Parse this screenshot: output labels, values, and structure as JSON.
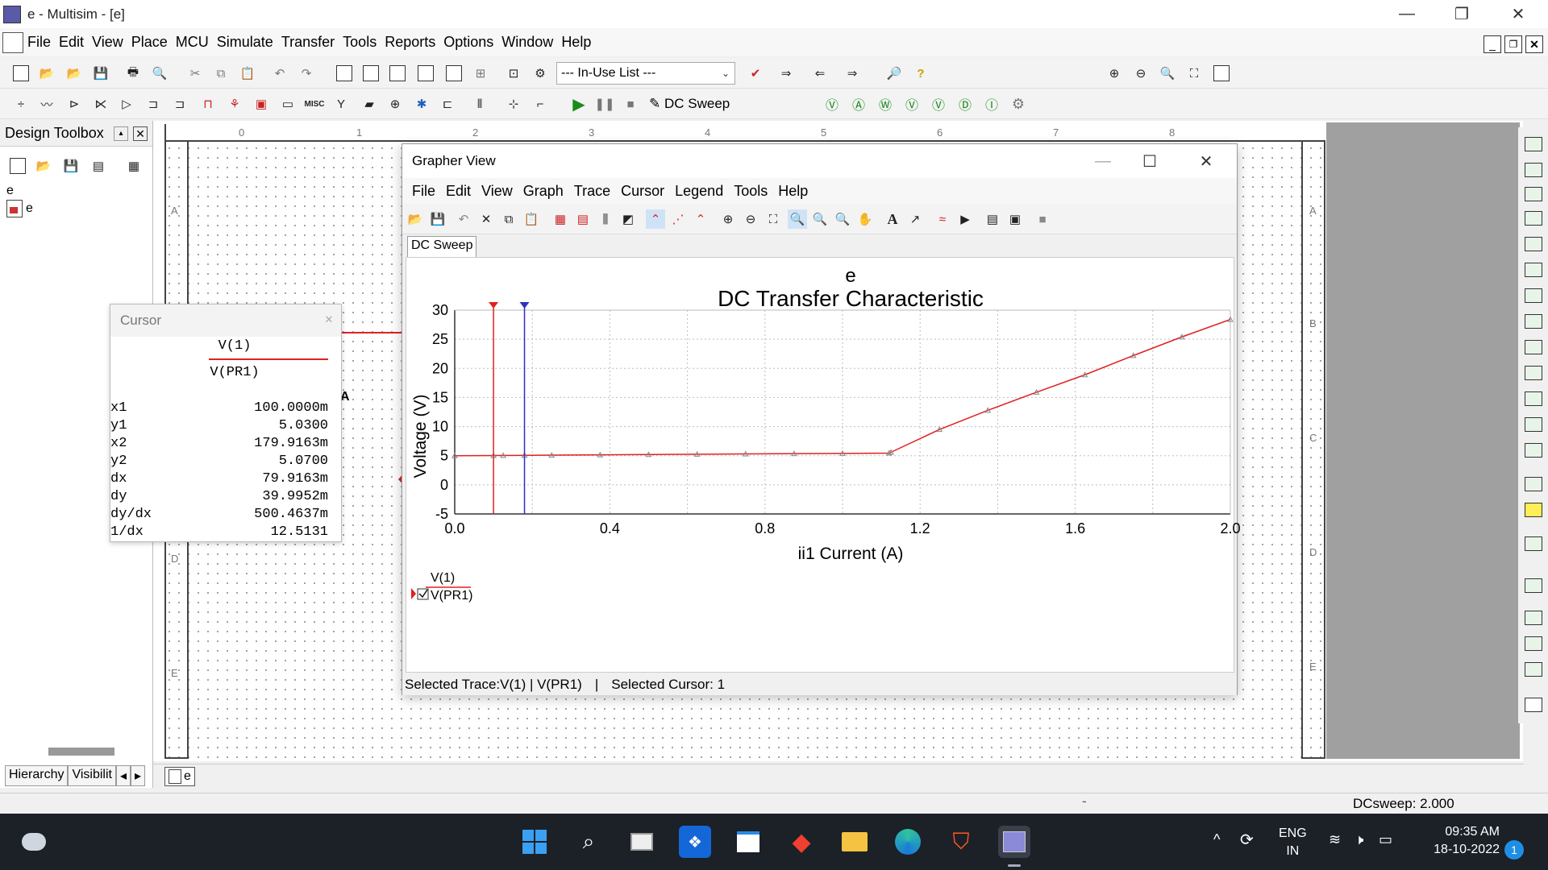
{
  "window": {
    "title": "e - Multisim - [e]",
    "minimize": "—",
    "restore": "❐",
    "close": "✕"
  },
  "menu": [
    "File",
    "Edit",
    "View",
    "Place",
    "MCU",
    "Simulate",
    "Transfer",
    "Tools",
    "Reports",
    "Options",
    "Window",
    "Help"
  ],
  "toolbar": {
    "in_use_list": "--- In-Use List ---",
    "analysis_label": "DC Sweep"
  },
  "toolbox": {
    "title": "Design Toolbox",
    "root": "e",
    "child": "e",
    "tab_hierarchy": "Hierarchy",
    "tab_visibility": "Visibilit"
  },
  "canvas": {
    "ruler_top": [
      "0",
      "1",
      "2",
      "3",
      "4",
      "5",
      "6",
      "7",
      "8"
    ],
    "ruler_side": [
      "A",
      "B",
      "C",
      "D",
      "E"
    ],
    "doc_tab": "e",
    "probe_label": "A"
  },
  "cursor_window": {
    "title": "Cursor",
    "trace_name": "V(1)",
    "trace_probe": "V(PR1)",
    "rows": [
      {
        "label": "x1",
        "value": "100.0000m"
      },
      {
        "label": "y1",
        "value": "5.0300"
      },
      {
        "label": "x2",
        "value": "179.9163m"
      },
      {
        "label": "y2",
        "value": "5.0700"
      },
      {
        "label": "dx",
        "value": "79.9163m"
      },
      {
        "label": "dy",
        "value": "39.9952m"
      },
      {
        "label": "dy/dx",
        "value": "500.4637m"
      },
      {
        "label": "1/dx",
        "value": "12.5131"
      }
    ]
  },
  "grapher": {
    "title": "Grapher View",
    "menu": [
      "File",
      "Edit",
      "View",
      "Graph",
      "Trace",
      "Cursor",
      "Legend",
      "Tools",
      "Help"
    ],
    "tab": "DC Sweep",
    "legend_name": "V(1)",
    "legend_probe": "V(PR1)",
    "status_trace": "Selected Trace:V(1) | V(PR1)",
    "status_sep": "|",
    "status_cursor": "Selected Cursor: 1"
  },
  "chart_data": {
    "type": "line",
    "title": "e",
    "subtitle": "DC Transfer Characteristic",
    "xlabel": "ii1 Current (A)",
    "ylabel": "Voltage (V)",
    "xlim": [
      0.0,
      2.0
    ],
    "ylim": [
      -5,
      30
    ],
    "xticks": [
      "0.0",
      "0.4",
      "0.8",
      "1.2",
      "1.6",
      "2.0"
    ],
    "yticks": [
      "30",
      "25",
      "20",
      "15",
      "10",
      "5",
      "0",
      "-5"
    ],
    "grid": true,
    "series": [
      {
        "name": "V(1) V(PR1)",
        "color": "#e02020",
        "x": [
          0.0,
          0.1,
          0.125,
          0.18,
          0.25,
          0.375,
          0.5,
          0.625,
          0.75,
          0.875,
          1.0,
          1.12,
          1.125,
          1.25,
          1.375,
          1.5,
          1.625,
          1.75,
          1.875,
          2.0
        ],
        "y": [
          5.0,
          5.03,
          5.04,
          5.07,
          5.1,
          5.15,
          5.2,
          5.25,
          5.3,
          5.35,
          5.4,
          5.45,
          5.6,
          9.5,
          12.8,
          15.9,
          18.9,
          22.2,
          25.4,
          28.4
        ]
      }
    ],
    "cursors": [
      {
        "name": "cursor1",
        "x": 0.1,
        "color": "#e02020"
      },
      {
        "name": "cursor2",
        "x": 0.1799,
        "color": "#3030c0"
      }
    ]
  },
  "statusbar": {
    "sweep": "DCsweep: 2.000",
    "mid": "-"
  },
  "taskbar": {
    "lang_top": "ENG",
    "lang_bottom": "IN",
    "time": "09:35 AM",
    "date": "18-10-2022",
    "badge": "1"
  }
}
